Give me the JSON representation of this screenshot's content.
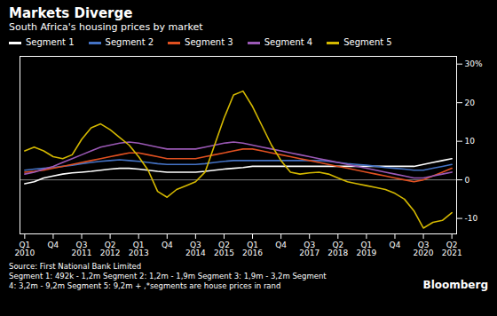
{
  "chart_data": {
    "type": "line",
    "title": "Markets Diverge",
    "subtitle": "South Africa's housing prices by market",
    "caption": "Source: First National Bank Limited\nSegment 1: 492k - 1,2m Segment 2: 1,2m - 1,9m Segment 3: 1,9m - 3,2m Segment\n4: 3,2m - 9,2m Segment 5: 9,2m + ,*segments are house prices in rand",
    "annotations": [
      "Bloomberg"
    ],
    "legend": "top-left",
    "grid": false,
    "categories": [
      "Q1\n2010",
      null,
      null,
      "Q4",
      null,
      null,
      "Q3\n2011",
      null,
      null,
      "Q2\n2012",
      null,
      null,
      "Q1\n2013",
      null,
      null,
      "Q4",
      null,
      null,
      "Q3\n2014",
      null,
      null,
      "Q2\n2015",
      null,
      null,
      "Q1\n2016",
      null,
      null,
      "Q4",
      null,
      null,
      "Q3\n2017",
      null,
      null,
      "Q2\n2018",
      null,
      null,
      "Q1\n2019",
      null,
      null,
      "Q4",
      null,
      null,
      "Q3\n2020",
      null,
      null,
      "Q2\n2021"
    ],
    "ylim": [
      -14,
      32
    ],
    "yticks": [
      -10,
      0,
      10,
      20,
      {
        "value": 30,
        "label": "30%"
      }
    ],
    "series": [
      {
        "name": "Segment 1",
        "color": "#ffffff",
        "values": [
          -1.0,
          -0.5,
          0.5,
          1.0,
          1.5,
          1.8,
          2.0,
          2.2,
          2.5,
          2.8,
          3.0,
          3.0,
          2.8,
          2.5,
          2.2,
          2.0,
          2.0,
          2.0,
          2.0,
          2.2,
          2.5,
          2.8,
          3.0,
          3.2,
          3.5,
          3.5,
          3.5,
          3.5,
          3.5,
          3.5,
          3.5,
          3.5,
          3.5,
          3.5,
          3.5,
          3.5,
          3.5,
          3.5,
          3.5,
          3.5,
          3.5,
          3.5,
          4.0,
          4.5,
          5.0,
          5.5
        ]
      },
      {
        "name": "Segment 2",
        "color": "#4472c4",
        "values": [
          2.5,
          2.8,
          3.0,
          3.2,
          3.5,
          3.8,
          4.2,
          4.5,
          4.8,
          5.0,
          5.2,
          5.0,
          4.8,
          4.5,
          4.2,
          4.0,
          4.0,
          4.0,
          4.0,
          4.2,
          4.5,
          4.8,
          5.0,
          5.0,
          5.0,
          5.0,
          5.0,
          5.0,
          5.0,
          5.0,
          5.0,
          5.0,
          4.8,
          4.5,
          4.2,
          4.0,
          3.8,
          3.5,
          3.2,
          3.0,
          2.8,
          2.5,
          2.5,
          3.0,
          3.5,
          4.0
        ]
      },
      {
        "name": "Segment 3",
        "color": "#e05020",
        "values": [
          2.0,
          2.2,
          2.5,
          3.0,
          3.5,
          4.0,
          4.5,
          5.0,
          5.5,
          6.0,
          6.5,
          7.0,
          7.0,
          6.5,
          6.0,
          5.5,
          5.5,
          5.5,
          5.5,
          6.0,
          6.5,
          7.0,
          7.5,
          8.0,
          8.0,
          7.5,
          7.0,
          6.5,
          6.0,
          5.5,
          5.0,
          4.5,
          4.0,
          3.5,
          3.0,
          2.5,
          2.0,
          1.5,
          1.0,
          0.5,
          0.0,
          -0.5,
          0.0,
          1.0,
          2.0,
          3.0
        ]
      },
      {
        "name": "Segment 4",
        "color": "#9b59b6",
        "values": [
          1.5,
          2.0,
          2.8,
          3.5,
          4.5,
          5.5,
          6.5,
          7.5,
          8.5,
          9.0,
          9.5,
          9.8,
          9.5,
          9.0,
          8.5,
          8.0,
          8.0,
          8.0,
          8.0,
          8.5,
          9.0,
          9.5,
          9.8,
          9.5,
          9.0,
          8.5,
          8.0,
          7.5,
          7.0,
          6.5,
          6.0,
          5.5,
          5.0,
          4.5,
          4.0,
          3.5,
          3.0,
          2.5,
          2.0,
          1.5,
          1.0,
          0.5,
          0.5,
          1.0,
          1.5,
          2.0
        ]
      },
      {
        "name": "Segment 5",
        "color": "#d4b800",
        "values": [
          7.5,
          8.5,
          7.5,
          6.0,
          5.5,
          6.5,
          10.5,
          13.5,
          14.5,
          13.0,
          11.0,
          9.0,
          6.0,
          2.5,
          -3.0,
          -4.5,
          -2.5,
          -1.5,
          -0.5,
          2.0,
          9.0,
          16.0,
          22.0,
          23.0,
          19.0,
          14.0,
          9.0,
          5.0,
          2.0,
          1.5,
          1.8,
          2.0,
          1.5,
          0.5,
          -0.5,
          -1.0,
          -1.5,
          -2.0,
          -2.5,
          -3.5,
          -5.0,
          -8.0,
          -12.5,
          -11.0,
          -10.5,
          -8.5
        ]
      }
    ]
  }
}
